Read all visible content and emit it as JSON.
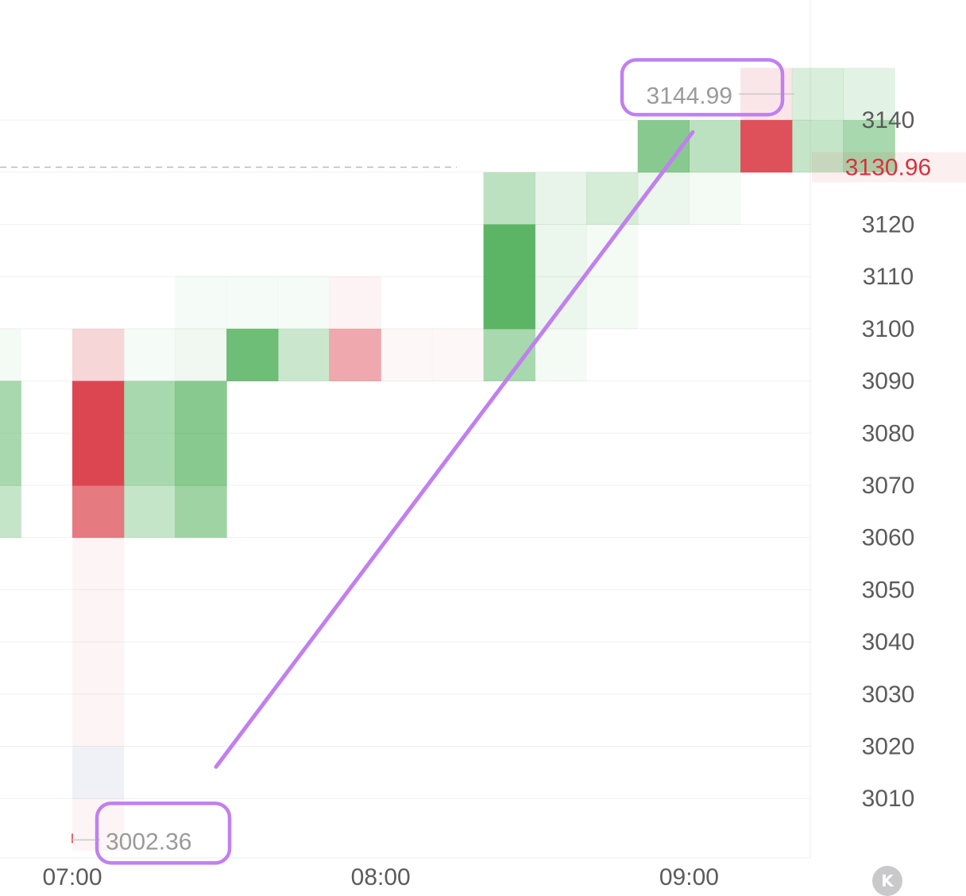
{
  "chart_data": {
    "type": "heatmap",
    "title": "",
    "xlabel": "",
    "ylabel": "",
    "x_ticks": [
      "07:00",
      "08:00",
      "09:00"
    ],
    "y_ticks": [
      3140,
      3130,
      3120,
      3110,
      3100,
      3090,
      3080,
      3070,
      3060,
      3050,
      3040,
      3030,
      3020,
      3010
    ],
    "y_tick_labels": [
      "3140",
      "3120",
      "3110",
      "3100",
      "3090",
      "3080",
      "3070",
      "3060",
      "3050",
      "3040",
      "3030",
      "3020",
      "3010"
    ],
    "ylim": [
      3000,
      3150
    ],
    "grid": true,
    "time_range": [
      "06:40",
      "09:30"
    ],
    "bar_minutes": 10,
    "price_bin": 10,
    "current_price": {
      "value": 3130.96,
      "label": "3130.96",
      "color": "#d8323e"
    },
    "session_high": {
      "value": 3144.99,
      "label": "3144.99",
      "time": "09:20"
    },
    "session_low": {
      "value": 3002.36,
      "label": "3002.36",
      "time": "07:00"
    },
    "colors": {
      "buy": "#3fa84a",
      "sell": "#d8323e",
      "neutral": "#c5c8dc",
      "annotation": "#c080f0"
    },
    "cells": [
      {
        "t": "06:40",
        "lo": 3060,
        "hi": 3070,
        "side": "buy",
        "intensity": 0.3
      },
      {
        "t": "06:40",
        "lo": 3070,
        "hi": 3090,
        "side": "buy",
        "intensity": 0.45
      },
      {
        "t": "06:40",
        "lo": 3090,
        "hi": 3100,
        "side": "buy",
        "intensity": 0.06
      },
      {
        "t": "07:00",
        "lo": 3000,
        "hi": 3010,
        "side": "sell",
        "intensity": 0.05
      },
      {
        "t": "07:00",
        "lo": 3010,
        "hi": 3020,
        "side": "neutral",
        "intensity": 0.25
      },
      {
        "t": "07:00",
        "lo": 3020,
        "hi": 3060,
        "side": "sell",
        "intensity": 0.05
      },
      {
        "t": "07:00",
        "lo": 3060,
        "hi": 3070,
        "side": "sell",
        "intensity": 0.65
      },
      {
        "t": "07:00",
        "lo": 3070,
        "hi": 3090,
        "side": "sell",
        "intensity": 0.9
      },
      {
        "t": "07:00",
        "lo": 3090,
        "hi": 3100,
        "side": "sell",
        "intensity": 0.2
      },
      {
        "t": "07:10",
        "lo": 3060,
        "hi": 3070,
        "side": "buy",
        "intensity": 0.3
      },
      {
        "t": "07:10",
        "lo": 3070,
        "hi": 3090,
        "side": "buy",
        "intensity": 0.45
      },
      {
        "t": "07:10",
        "lo": 3090,
        "hi": 3100,
        "side": "buy",
        "intensity": 0.05
      },
      {
        "t": "07:20",
        "lo": 3060,
        "hi": 3070,
        "side": "buy",
        "intensity": 0.5
      },
      {
        "t": "07:20",
        "lo": 3070,
        "hi": 3090,
        "side": "buy",
        "intensity": 0.62
      },
      {
        "t": "07:20",
        "lo": 3090,
        "hi": 3100,
        "side": "buy",
        "intensity": 0.08
      },
      {
        "t": "07:20",
        "lo": 3100,
        "hi": 3110,
        "side": "buy",
        "intensity": 0.05
      },
      {
        "t": "07:30",
        "lo": 3090,
        "hi": 3100,
        "side": "buy",
        "intensity": 0.75
      },
      {
        "t": "07:30",
        "lo": 3100,
        "hi": 3110,
        "side": "buy",
        "intensity": 0.05
      },
      {
        "t": "07:40",
        "lo": 3090,
        "hi": 3100,
        "side": "buy",
        "intensity": 0.28
      },
      {
        "t": "07:40",
        "lo": 3100,
        "hi": 3110,
        "side": "buy",
        "intensity": 0.05
      },
      {
        "t": "07:50",
        "lo": 3090,
        "hi": 3100,
        "side": "sell",
        "intensity": 0.42
      },
      {
        "t": "07:50",
        "lo": 3100,
        "hi": 3110,
        "side": "sell",
        "intensity": 0.06
      },
      {
        "t": "08:00",
        "lo": 3090,
        "hi": 3100,
        "side": "sell",
        "intensity": 0.04
      },
      {
        "t": "08:10",
        "lo": 3090,
        "hi": 3100,
        "side": "sell",
        "intensity": 0.04
      },
      {
        "t": "08:20",
        "lo": 3090,
        "hi": 3100,
        "side": "buy",
        "intensity": 0.45
      },
      {
        "t": "08:20",
        "lo": 3100,
        "hi": 3120,
        "side": "buy",
        "intensity": 0.85
      },
      {
        "t": "08:20",
        "lo": 3120,
        "hi": 3130,
        "side": "buy",
        "intensity": 0.35
      },
      {
        "t": "08:30",
        "lo": 3090,
        "hi": 3100,
        "side": "buy",
        "intensity": 0.06
      },
      {
        "t": "08:30",
        "lo": 3100,
        "hi": 3120,
        "side": "buy",
        "intensity": 0.1
      },
      {
        "t": "08:30",
        "lo": 3120,
        "hi": 3130,
        "side": "buy",
        "intensity": 0.12
      },
      {
        "t": "08:40",
        "lo": 3100,
        "hi": 3120,
        "side": "buy",
        "intensity": 0.06
      },
      {
        "t": "08:40",
        "lo": 3120,
        "hi": 3130,
        "side": "buy",
        "intensity": 0.22
      },
      {
        "t": "08:50",
        "lo": 3120,
        "hi": 3130,
        "side": "buy",
        "intensity": 0.1
      },
      {
        "t": "08:50",
        "lo": 3130,
        "hi": 3140,
        "side": "buy",
        "intensity": 0.62
      },
      {
        "t": "09:00",
        "lo": 3120,
        "hi": 3130,
        "side": "buy",
        "intensity": 0.06
      },
      {
        "t": "09:00",
        "lo": 3130,
        "hi": 3140,
        "side": "buy",
        "intensity": 0.35
      },
      {
        "t": "09:10",
        "lo": 3130,
        "hi": 3140,
        "side": "sell",
        "intensity": 0.85
      },
      {
        "t": "09:10",
        "lo": 3140,
        "hi": 3150,
        "side": "sell",
        "intensity": 0.12
      },
      {
        "t": "09:20",
        "lo": 3130,
        "hi": 3140,
        "side": "buy",
        "intensity": 0.3
      },
      {
        "t": "09:20",
        "lo": 3140,
        "hi": 3150,
        "side": "buy",
        "intensity": 0.2
      },
      {
        "t": "09:30",
        "lo": 3130,
        "hi": 3140,
        "side": "buy",
        "intensity": 0.45
      },
      {
        "t": "09:30",
        "lo": 3140,
        "hi": 3150,
        "side": "buy",
        "intensity": 0.15
      }
    ]
  },
  "controls": {
    "collapse_button": "K"
  }
}
